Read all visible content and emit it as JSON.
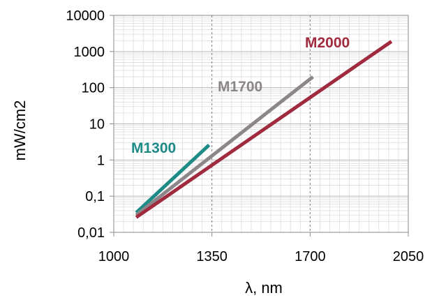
{
  "chart_data": {
    "type": "line",
    "title": "",
    "xlabel": "λ, nm",
    "ylabel": "mW/cm2",
    "xlim": [
      1000,
      2050
    ],
    "ylim": [
      0.01,
      10000
    ],
    "y_scale": "log",
    "grid": true,
    "x_ticks": [
      1000,
      1350,
      1700,
      2050
    ],
    "x_tick_labels": [
      "1000",
      "1350",
      "1700",
      "2050"
    ],
    "y_ticks": [
      0.01,
      0.1,
      1,
      10,
      100,
      1000,
      10000
    ],
    "y_tick_labels": [
      "0,01",
      "0,1",
      "1",
      "10",
      "100",
      "1000",
      "10000"
    ],
    "series": [
      {
        "name": "M1300",
        "color": "#1e8b87",
        "x": [
          1080,
          1340
        ],
        "y": [
          0.035,
          2.6
        ]
      },
      {
        "name": "M1700",
        "color": "#8c8589",
        "x": [
          1080,
          1710
        ],
        "y": [
          0.03,
          200
        ]
      },
      {
        "name": "M2000",
        "color": "#a02a3e",
        "x": [
          1080,
          1990
        ],
        "y": [
          0.026,
          1900
        ]
      }
    ]
  }
}
